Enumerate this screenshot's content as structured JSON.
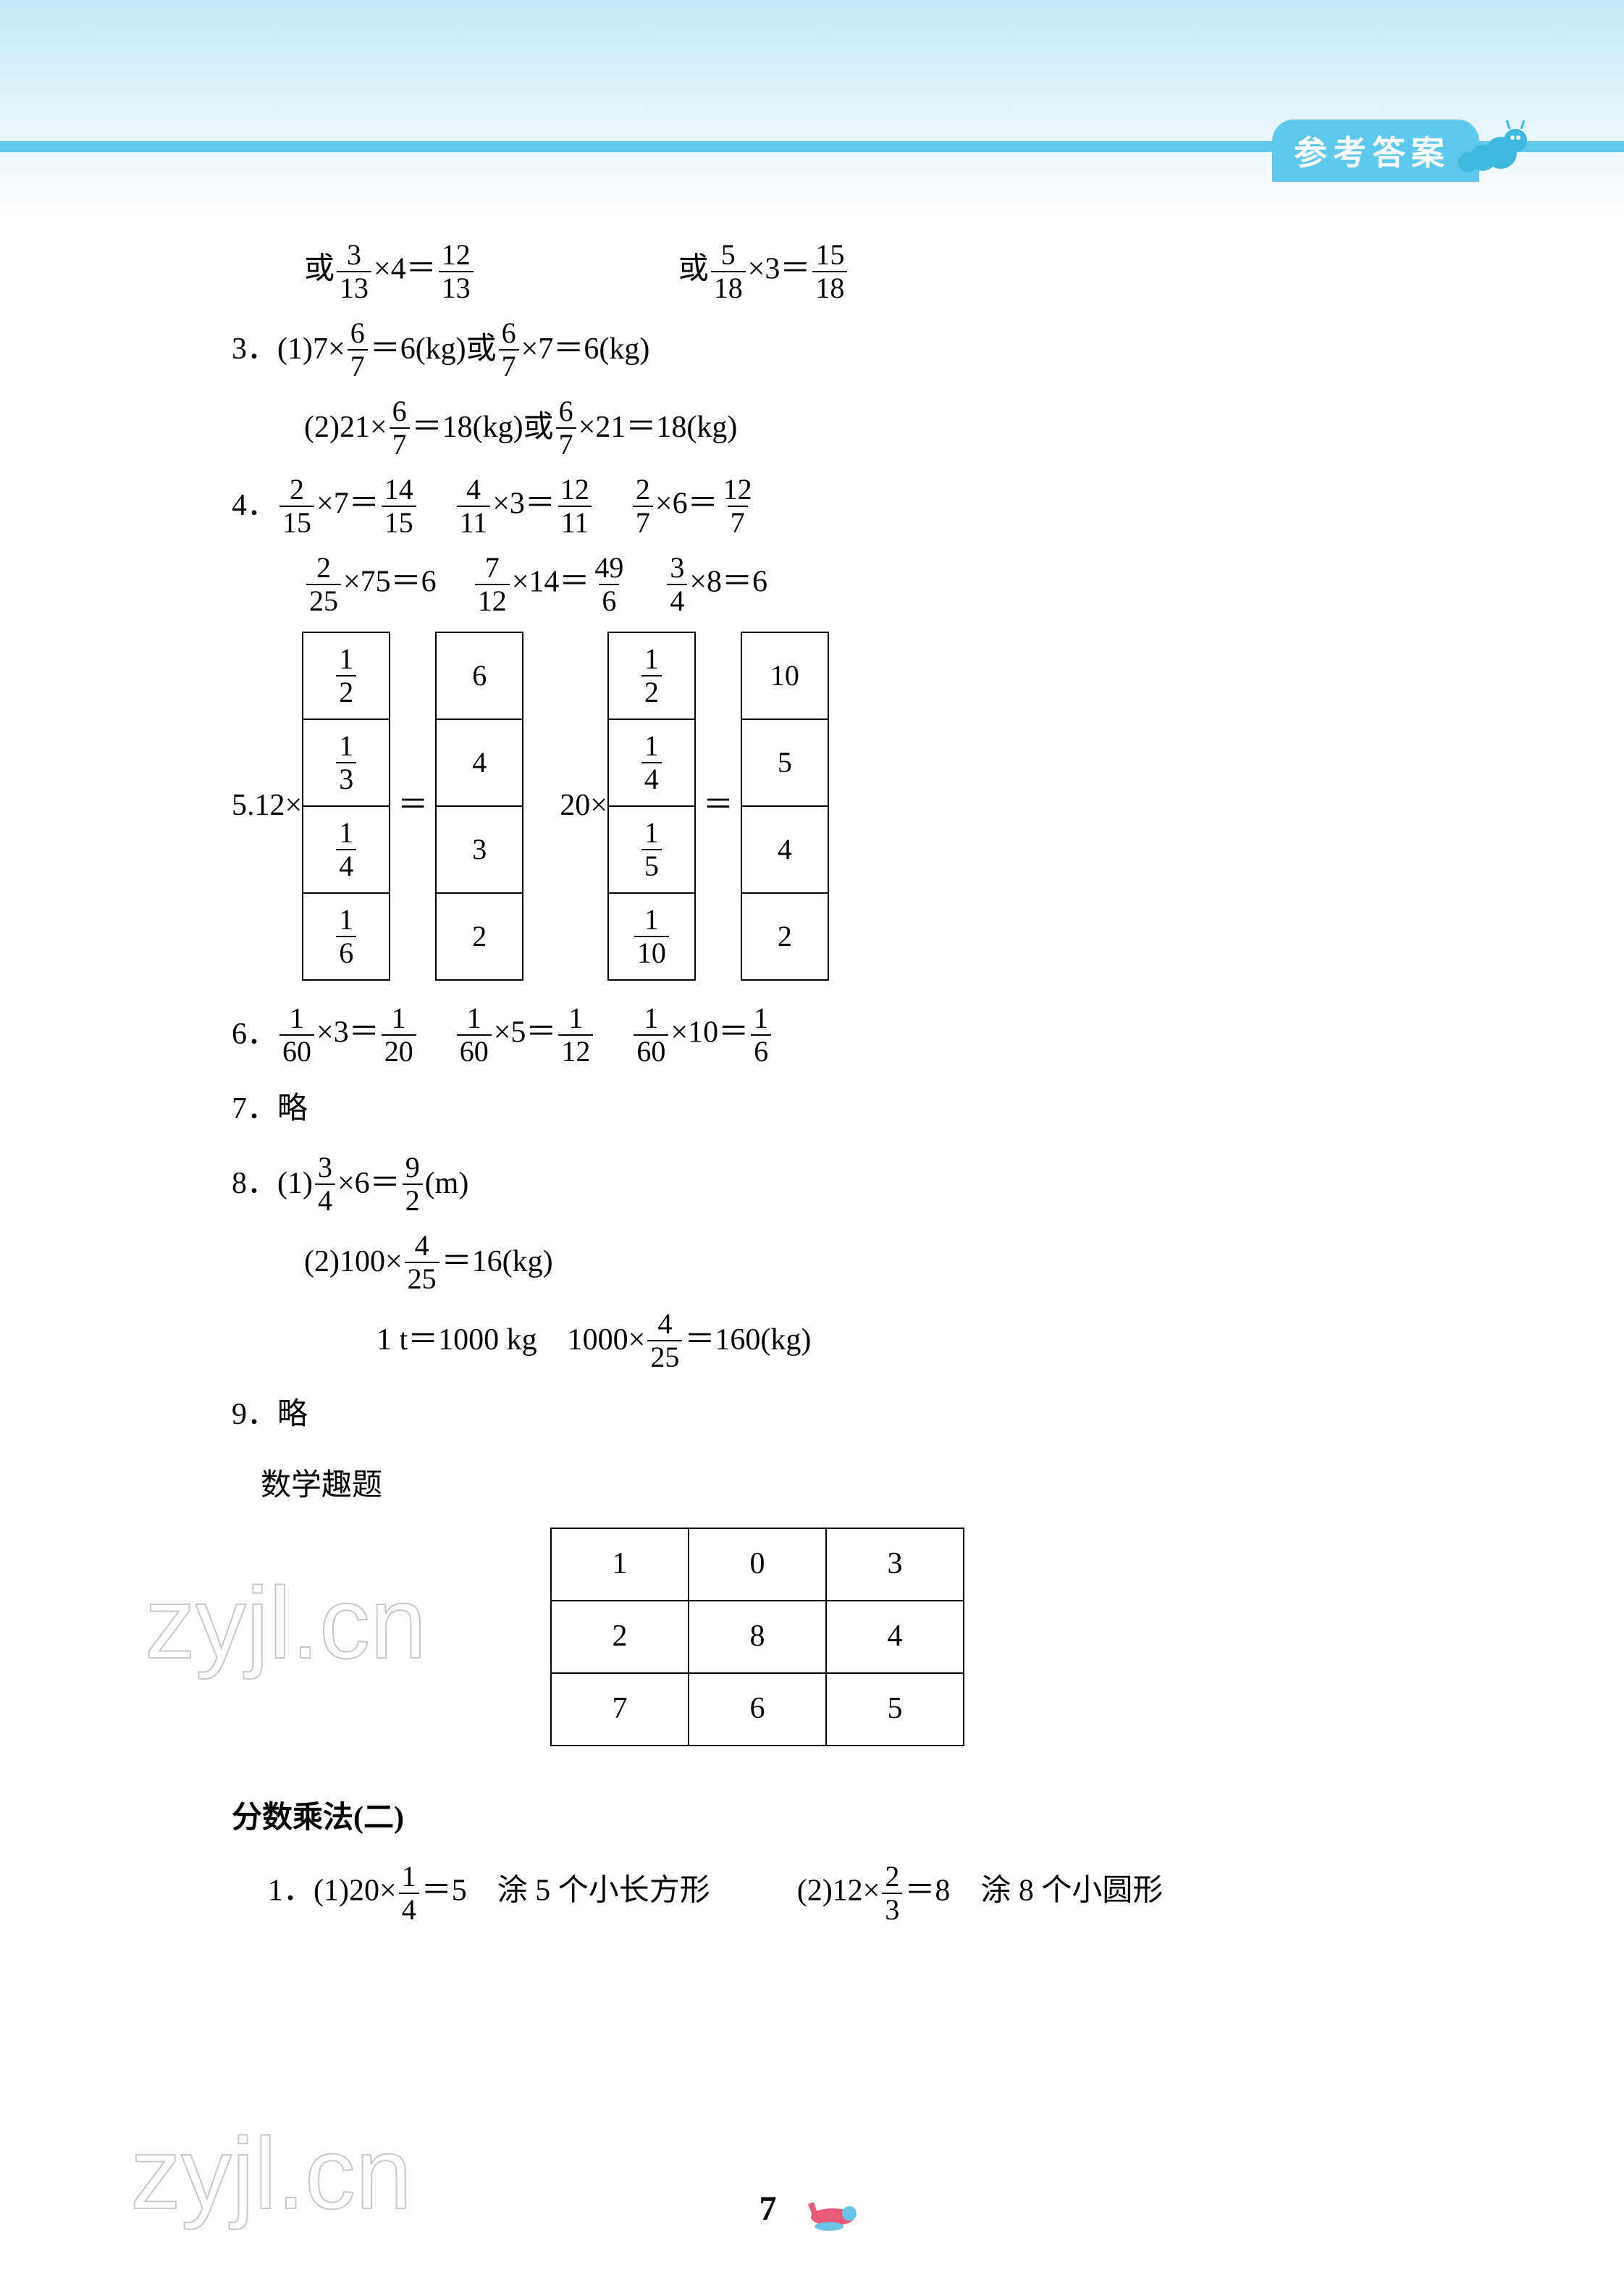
{
  "header": {
    "title": "参考答案"
  },
  "colors": {
    "header_bg": "#5dc8ec",
    "text": "#000000",
    "page_bg": "#ffffff",
    "gradient_top": "#c2e9f8"
  },
  "fonts": {
    "body_size": 42,
    "header_size": 46
  },
  "ans_top": {
    "left": {
      "f1n": "3",
      "f1d": "13",
      "op": "×4＝",
      "f2n": "12",
      "f2d": "13",
      "prefix": "或"
    },
    "right": {
      "f1n": "5",
      "f1d": "18",
      "op": "×3＝",
      "f2n": "15",
      "f2d": "18",
      "prefix": "或"
    }
  },
  "q3": {
    "label": "3．",
    "p1": {
      "pre": "(1)7×",
      "fn": "6",
      "fd": "7",
      "mid": "＝6(kg)或",
      "fn2": "6",
      "fd2": "7",
      "post": "×7＝6(kg)"
    },
    "p2": {
      "pre": "(2)21×",
      "fn": "6",
      "fd": "7",
      "mid": "＝18(kg)或",
      "fn2": "6",
      "fd2": "7",
      "post": "×21＝18(kg)"
    }
  },
  "q4": {
    "label": "4．",
    "r1": [
      {
        "an": "2",
        "ad": "15",
        "op": "×7＝",
        "bn": "14",
        "bd": "15"
      },
      {
        "an": "4",
        "ad": "11",
        "op": "×3＝",
        "bn": "12",
        "bd": "11"
      },
      {
        "an": "2",
        "ad": "7",
        "op": "×6＝",
        "bn": "12",
        "bd": "7"
      }
    ],
    "r2": [
      {
        "an": "2",
        "ad": "25",
        "op": "×75＝6"
      },
      {
        "an": "7",
        "ad": "12",
        "op": "×14＝",
        "bn": "49",
        "bd": "6"
      },
      {
        "an": "3",
        "ad": "4",
        "op": "×8＝6"
      }
    ]
  },
  "q5": {
    "label": "5. ",
    "m1": "12×",
    "m2": "20×",
    "eq": "＝",
    "t1_left": [
      [
        "1",
        "2"
      ],
      [
        "1",
        "3"
      ],
      [
        "1",
        "4"
      ],
      [
        "1",
        "6"
      ]
    ],
    "t1_right": [
      "6",
      "4",
      "3",
      "2"
    ],
    "t2_left": [
      [
        "1",
        "2"
      ],
      [
        "1",
        "4"
      ],
      [
        "1",
        "5"
      ],
      [
        "1",
        "10"
      ]
    ],
    "t2_right": [
      "10",
      "5",
      "4",
      "2"
    ]
  },
  "q6": {
    "label": "6．",
    "items": [
      {
        "an": "1",
        "ad": "60",
        "op": "×3＝",
        "bn": "1",
        "bd": "20"
      },
      {
        "an": "1",
        "ad": "60",
        "op": "×5＝",
        "bn": "1",
        "bd": "12"
      },
      {
        "an": "1",
        "ad": "60",
        "op": "×10＝",
        "bn": "1",
        "bd": "6"
      }
    ]
  },
  "q7": {
    "text": "7．略"
  },
  "q8": {
    "label": "8．",
    "p1": {
      "pre": "(1)",
      "fn": "3",
      "fd": "4",
      "mid": "×6＝",
      "rn": "9",
      "rd": "2",
      "post": "(m)"
    },
    "p2": {
      "pre": "(2)100×",
      "fn": "4",
      "fd": "25",
      "post": "＝16(kg)"
    },
    "p3": {
      "pre": "1 t＝1000 kg　1000×",
      "fn": "4",
      "fd": "25",
      "post": "＝160(kg)"
    }
  },
  "q9": {
    "text": "9．略"
  },
  "fun": {
    "title": "数学趣题",
    "grid": [
      [
        "1",
        "0",
        "3"
      ],
      [
        "2",
        "8",
        "4"
      ],
      [
        "7",
        "6",
        "5"
      ]
    ]
  },
  "sec2": {
    "title": "分数乘法(二)",
    "q1": {
      "label": "1．",
      "p1": {
        "pre": "(1)20×",
        "fn": "1",
        "fd": "4",
        "mid": "＝5　涂 5 个小长方形"
      },
      "p2": {
        "pre": "(2)12×",
        "fn": "2",
        "fd": "3",
        "mid": "＝8　涂 8 个小圆形"
      }
    }
  },
  "watermark": "zyjl.cn",
  "page": "7"
}
